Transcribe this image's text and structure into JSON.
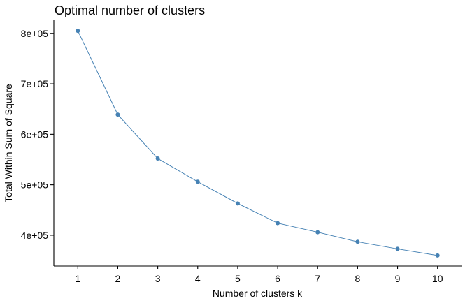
{
  "chart_data": {
    "type": "line",
    "title": "Optimal number of clusters",
    "xlabel": "Number of clusters k",
    "ylabel": "Total Within Sum of Square",
    "x": [
      1,
      2,
      3,
      4,
      5,
      6,
      7,
      8,
      9,
      10
    ],
    "series": [
      {
        "values": [
          805000,
          639000,
          552000,
          506000,
          463000,
          424000,
          406000,
          387000,
          373000,
          360000
        ],
        "color": "#4682B4"
      }
    ],
    "x_ticks": [
      "1",
      "2",
      "3",
      "4",
      "5",
      "6",
      "7",
      "8",
      "9",
      "10"
    ],
    "y_ticks": [
      {
        "value": 400000,
        "label": "4e+05"
      },
      {
        "value": 500000,
        "label": "5e+05"
      },
      {
        "value": 600000,
        "label": "6e+05"
      },
      {
        "value": 700000,
        "label": "7e+05"
      },
      {
        "value": 800000,
        "label": "8e+05"
      }
    ],
    "xlim": [
      0.4,
      10.6
    ],
    "ylim": [
      339000,
      826000
    ],
    "grid": false,
    "legend": "none"
  }
}
